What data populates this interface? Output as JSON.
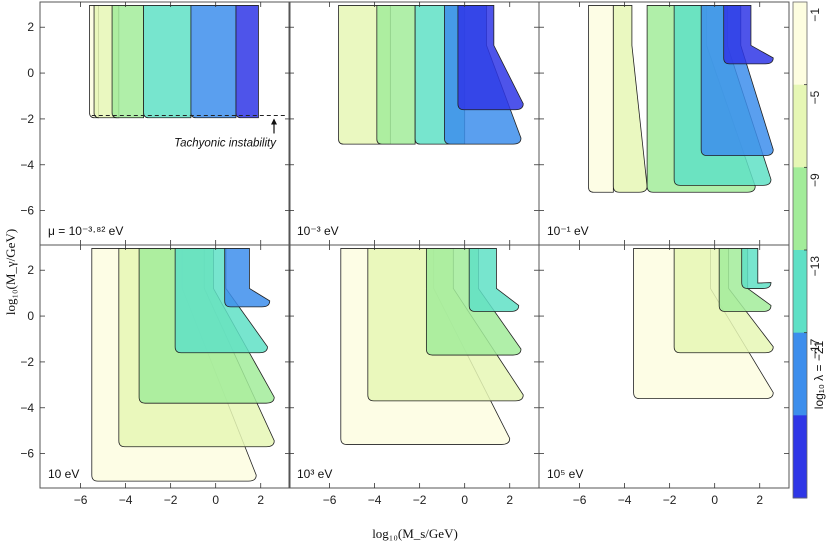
{
  "chart_data": {
    "type": "area",
    "x_axis": {
      "label": "log₁₀(M_s/GeV)",
      "range": [
        -7.8,
        3.3
      ],
      "ticks": [
        -6,
        -4,
        -2,
        0,
        2
      ]
    },
    "y_axis": {
      "label": "log₁₀(M_γ/GeV)",
      "range": [
        -7.5,
        3.1
      ],
      "ticks": [
        -6,
        -4,
        -2,
        0,
        2
      ]
    },
    "colorbar": {
      "label": "log₁₀ λ = −21",
      "tick_labels": [
        "−1",
        "−5",
        "−9",
        "−13",
        "−17"
      ],
      "colors": [
        "#fdfde0",
        "#e6f7b5",
        "#a2ec9a",
        "#5fe0c6",
        "#3d8eec",
        "#2f36e6"
      ]
    },
    "panels": [
      {
        "label": "μ = 10⁻³·⁸² eV",
        "annotation": "Tachyonic instability",
        "tachyon_line_y": -1.85,
        "regions": [
          {
            "band": "−1",
            "xmin": -5.6,
            "xmax": -5.2,
            "ymin": -1.95,
            "ytop": 2.95,
            "shape": "rect"
          },
          {
            "band": "−5",
            "xmin": -5.4,
            "xmax": -4.3,
            "ymin": -1.95,
            "ytop": 2.95,
            "shape": "rect"
          },
          {
            "band": "−9",
            "xmin": -4.6,
            "xmax": -3.2,
            "ymin": -1.95,
            "ytop": 2.95,
            "shape": "rect"
          },
          {
            "band": "−13",
            "xmin": -3.2,
            "xmax": -1.1,
            "ymin": -1.95,
            "ytop": 2.95,
            "shape": "rect"
          },
          {
            "band": "−17",
            "xmin": -1.1,
            "xmax": 0.9,
            "ymin": -1.95,
            "ytop": 2.95,
            "shape": "rect"
          },
          {
            "band": "−21",
            "xmin": 0.9,
            "xmax": 1.9,
            "ymin": -1.95,
            "ytop": 2.95,
            "shape": "rect"
          }
        ]
      },
      {
        "label": "10⁻³ eV",
        "regions": [
          {
            "band": "−5",
            "xmin": -5.6,
            "xmax": -3.3,
            "ymin": -3.1,
            "ytop": 2.95,
            "shape": "rect"
          },
          {
            "band": "−9",
            "xmin": -3.9,
            "xmax": -2.2,
            "ymin": -3.1,
            "ytop": 2.95,
            "shape": "rect"
          },
          {
            "band": "−13",
            "xmin": -2.2,
            "xmax": 0.0,
            "ymin": -3.1,
            "ytop": 2.95,
            "shape": "rect"
          },
          {
            "band": "−17",
            "xmin": -0.9,
            "xmax": 2.5,
            "ymin": -3.1,
            "ytop": 2.95,
            "shape": "trap"
          },
          {
            "band": "−21",
            "xmin": -0.3,
            "xmax": 2.6,
            "ymin": -1.6,
            "ytop": 2.95,
            "shape": "trap"
          }
        ]
      },
      {
        "label": "10⁻¹ eV",
        "regions": [
          {
            "band": "−1",
            "xmin": -5.6,
            "xmax": -4.5,
            "ymin": -5.2,
            "ytop": 2.95,
            "shape": "rect"
          },
          {
            "band": "−5",
            "xmin": -4.5,
            "xmax": -3.0,
            "ymin": -5.2,
            "ytop": 2.95,
            "shape": "trap"
          },
          {
            "band": "−9",
            "xmin": -3.0,
            "xmax": 1.8,
            "ymin": -5.2,
            "ytop": 2.95,
            "shape": "trap"
          },
          {
            "band": "−13",
            "xmin": -1.8,
            "xmax": 2.5,
            "ymin": -4.9,
            "ytop": 2.95,
            "shape": "trap"
          },
          {
            "band": "−17",
            "xmin": -0.6,
            "xmax": 2.6,
            "ymin": -3.6,
            "ytop": 2.95,
            "shape": "trap"
          },
          {
            "band": "−21",
            "xmin": 0.4,
            "xmax": 2.6,
            "ymin": 0.4,
            "ytop": 2.95,
            "shape": "trap"
          }
        ]
      },
      {
        "label": "10 eV",
        "regions": [
          {
            "band": "−1",
            "xmin": -5.5,
            "xmax": 1.8,
            "ymin": -7.2,
            "ytop": 2.95,
            "shape": "trap"
          },
          {
            "band": "−5",
            "xmin": -4.3,
            "xmax": 2.6,
            "ymin": -5.7,
            "ytop": 2.95,
            "shape": "trap"
          },
          {
            "band": "−9",
            "xmin": -3.4,
            "xmax": 2.6,
            "ymin": -3.8,
            "ytop": 2.95,
            "shape": "trap"
          },
          {
            "band": "−13",
            "xmin": -1.8,
            "xmax": 2.3,
            "ymin": -1.6,
            "ytop": 2.95,
            "shape": "trap"
          },
          {
            "band": "−17",
            "xmin": 0.4,
            "xmax": 2.4,
            "ymin": 0.4,
            "ytop": 2.95,
            "shape": "trap"
          }
        ]
      },
      {
        "label": "10³ eV",
        "regions": [
          {
            "band": "−1",
            "xmin": -5.5,
            "xmax": 2.0,
            "ymin": -5.6,
            "ytop": 2.95,
            "shape": "trap"
          },
          {
            "band": "−5",
            "xmin": -4.3,
            "xmax": 2.6,
            "ymin": -3.7,
            "ytop": 2.95,
            "shape": "trap"
          },
          {
            "band": "−9",
            "xmin": -1.7,
            "xmax": 2.5,
            "ymin": -1.7,
            "ytop": 2.95,
            "shape": "trap"
          },
          {
            "band": "−13",
            "xmin": 0.2,
            "xmax": 2.4,
            "ymin": 0.2,
            "ytop": 2.95,
            "shape": "trap"
          }
        ]
      },
      {
        "label": "10⁵ eV",
        "regions": [
          {
            "band": "−1",
            "xmin": -3.6,
            "xmax": 2.6,
            "ymin": -3.6,
            "ytop": 2.95,
            "shape": "trap"
          },
          {
            "band": "−5",
            "xmin": -1.8,
            "xmax": 2.6,
            "ymin": -1.6,
            "ytop": 2.95,
            "shape": "trap"
          },
          {
            "band": "−9",
            "xmin": 0.2,
            "xmax": 2.5,
            "ymin": 0.2,
            "ytop": 2.95,
            "shape": "trap"
          },
          {
            "band": "−13",
            "xmin": 1.2,
            "xmax": 2.5,
            "ymin": 1.2,
            "ytop": 2.95,
            "shape": "trap"
          }
        ]
      }
    ]
  }
}
